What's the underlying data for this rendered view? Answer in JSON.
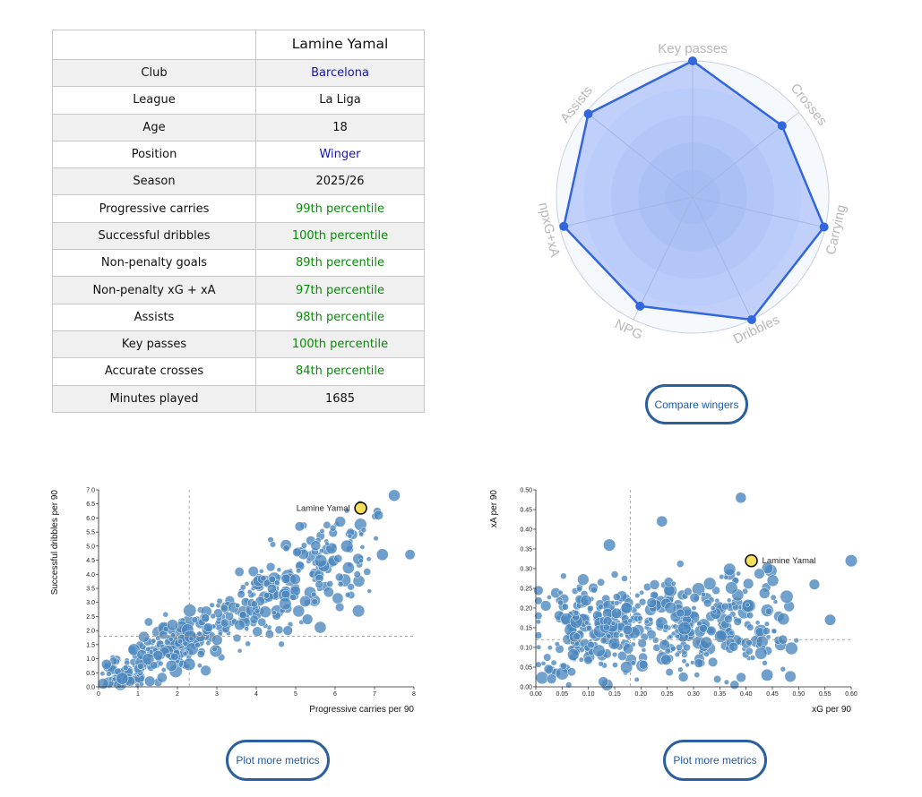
{
  "player_table": {
    "player_name": "Lamine Yamal",
    "rows": [
      {
        "label": "Club",
        "value": "Barcelona",
        "kind": "link"
      },
      {
        "label": "League",
        "value": "La Liga",
        "kind": "plain"
      },
      {
        "label": "Age",
        "value": "18",
        "kind": "plain"
      },
      {
        "label": "Position",
        "value": "Winger",
        "kind": "link"
      },
      {
        "label": "Season",
        "value": "2025/26",
        "kind": "plain"
      },
      {
        "label": "Progressive carries",
        "value": "99th percentile",
        "kind": "pct"
      },
      {
        "label": "Successful dribbles",
        "value": "100th percentile",
        "kind": "pct"
      },
      {
        "label": "Non-penalty goals",
        "value": "89th percentile",
        "kind": "pct"
      },
      {
        "label": "Non-penalty xG + xA",
        "value": "97th percentile",
        "kind": "pct"
      },
      {
        "label": "Assists",
        "value": "98th percentile",
        "kind": "pct"
      },
      {
        "label": "Key passes",
        "value": "100th percentile",
        "kind": "pct"
      },
      {
        "label": "Accurate crosses",
        "value": "84th percentile",
        "kind": "pct"
      },
      {
        "label": "Minutes played",
        "value": "1685",
        "kind": "plain"
      }
    ]
  },
  "buttons": {
    "compare": "Compare wingers",
    "plot_more_1": "Plot more metrics",
    "plot_more_2": "Plot more metrics"
  },
  "colors": {
    "accent_blue": "#3366dd",
    "bubble_blue": "#4a86be",
    "highlight_yellow": "#f5e05a",
    "percentile_green": "#0a8a0a",
    "link_blue": "#1414b0"
  },
  "chart_data": [
    {
      "type": "radar",
      "axes": [
        "Key passes",
        "Crosses",
        "Carrying",
        "Dribbles",
        "NPG",
        "npxG+xA",
        "Assists"
      ],
      "values": [
        100,
        84,
        99,
        100,
        89,
        97,
        98
      ],
      "range": [
        0,
        100
      ]
    },
    {
      "type": "scatter",
      "xlabel": "Progressive carries per 90",
      "ylabel": "Successful dribbles per 90",
      "xlim": [
        0,
        8
      ],
      "ylim": [
        0,
        7
      ],
      "xticks": [
        "0",
        "1",
        "2",
        "3",
        "4",
        "5",
        "6",
        "7",
        "8"
      ],
      "yticks": [
        "0.0",
        "0.5",
        "1.0",
        "1.5",
        "2.0",
        "2.5",
        "3.0",
        "3.5",
        "4.0",
        "4.5",
        "5.0",
        "5.5",
        "6.0",
        "6.5",
        "7.0"
      ],
      "ref_x": 2.3,
      "ref_y": 1.8,
      "highlight": {
        "label": "Lamine Yamal",
        "x": 6.65,
        "y": 6.35
      },
      "points_sample": [
        [
          7.5,
          6.8
        ],
        [
          7.1,
          6.1
        ],
        [
          7.9,
          4.7
        ],
        [
          7.2,
          4.7
        ],
        [
          6.3,
          5.0
        ],
        [
          5.1,
          5.7
        ],
        [
          5.3,
          2.4
        ],
        [
          4.8,
          2.0
        ],
        [
          0.2,
          0.8
        ],
        [
          0.6,
          0.3
        ],
        [
          1.3,
          0.2
        ],
        [
          2.3,
          0.8
        ]
      ],
      "generated_cloud_count": 440,
      "generated_cloud_seed": 12345
    },
    {
      "type": "scatter",
      "xlabel": "xG per 90",
      "ylabel": "xA per 90",
      "xlim": [
        0,
        0.6
      ],
      "ylim": [
        0,
        0.5
      ],
      "xticks": [
        "0.00",
        "0.05",
        "0.10",
        "0.15",
        "0.20",
        "0.25",
        "0.30",
        "0.35",
        "0.40",
        "0.45",
        "0.50",
        "0.55",
        "0.60"
      ],
      "yticks": [
        "0.00",
        "0.05",
        "0.10",
        "0.15",
        "0.20",
        "0.25",
        "0.30",
        "0.35",
        "0.40",
        "0.45",
        "0.50"
      ],
      "ref_x": 0.18,
      "ref_y": 0.12,
      "highlight": {
        "label": "Lamine Yamal",
        "x": 0.41,
        "y": 0.32
      },
      "points_sample": [
        [
          0.39,
          0.48
        ],
        [
          0.24,
          0.42
        ],
        [
          0.6,
          0.32
        ],
        [
          0.56,
          0.17
        ],
        [
          0.53,
          0.26
        ],
        [
          0.47,
          0.12
        ],
        [
          0.44,
          0.03
        ],
        [
          0.31,
          0.06
        ],
        [
          0.14,
          0.36
        ],
        [
          0.03,
          0.02
        ]
      ],
      "generated_cloud_count": 460,
      "generated_cloud_seed": 678
    }
  ]
}
